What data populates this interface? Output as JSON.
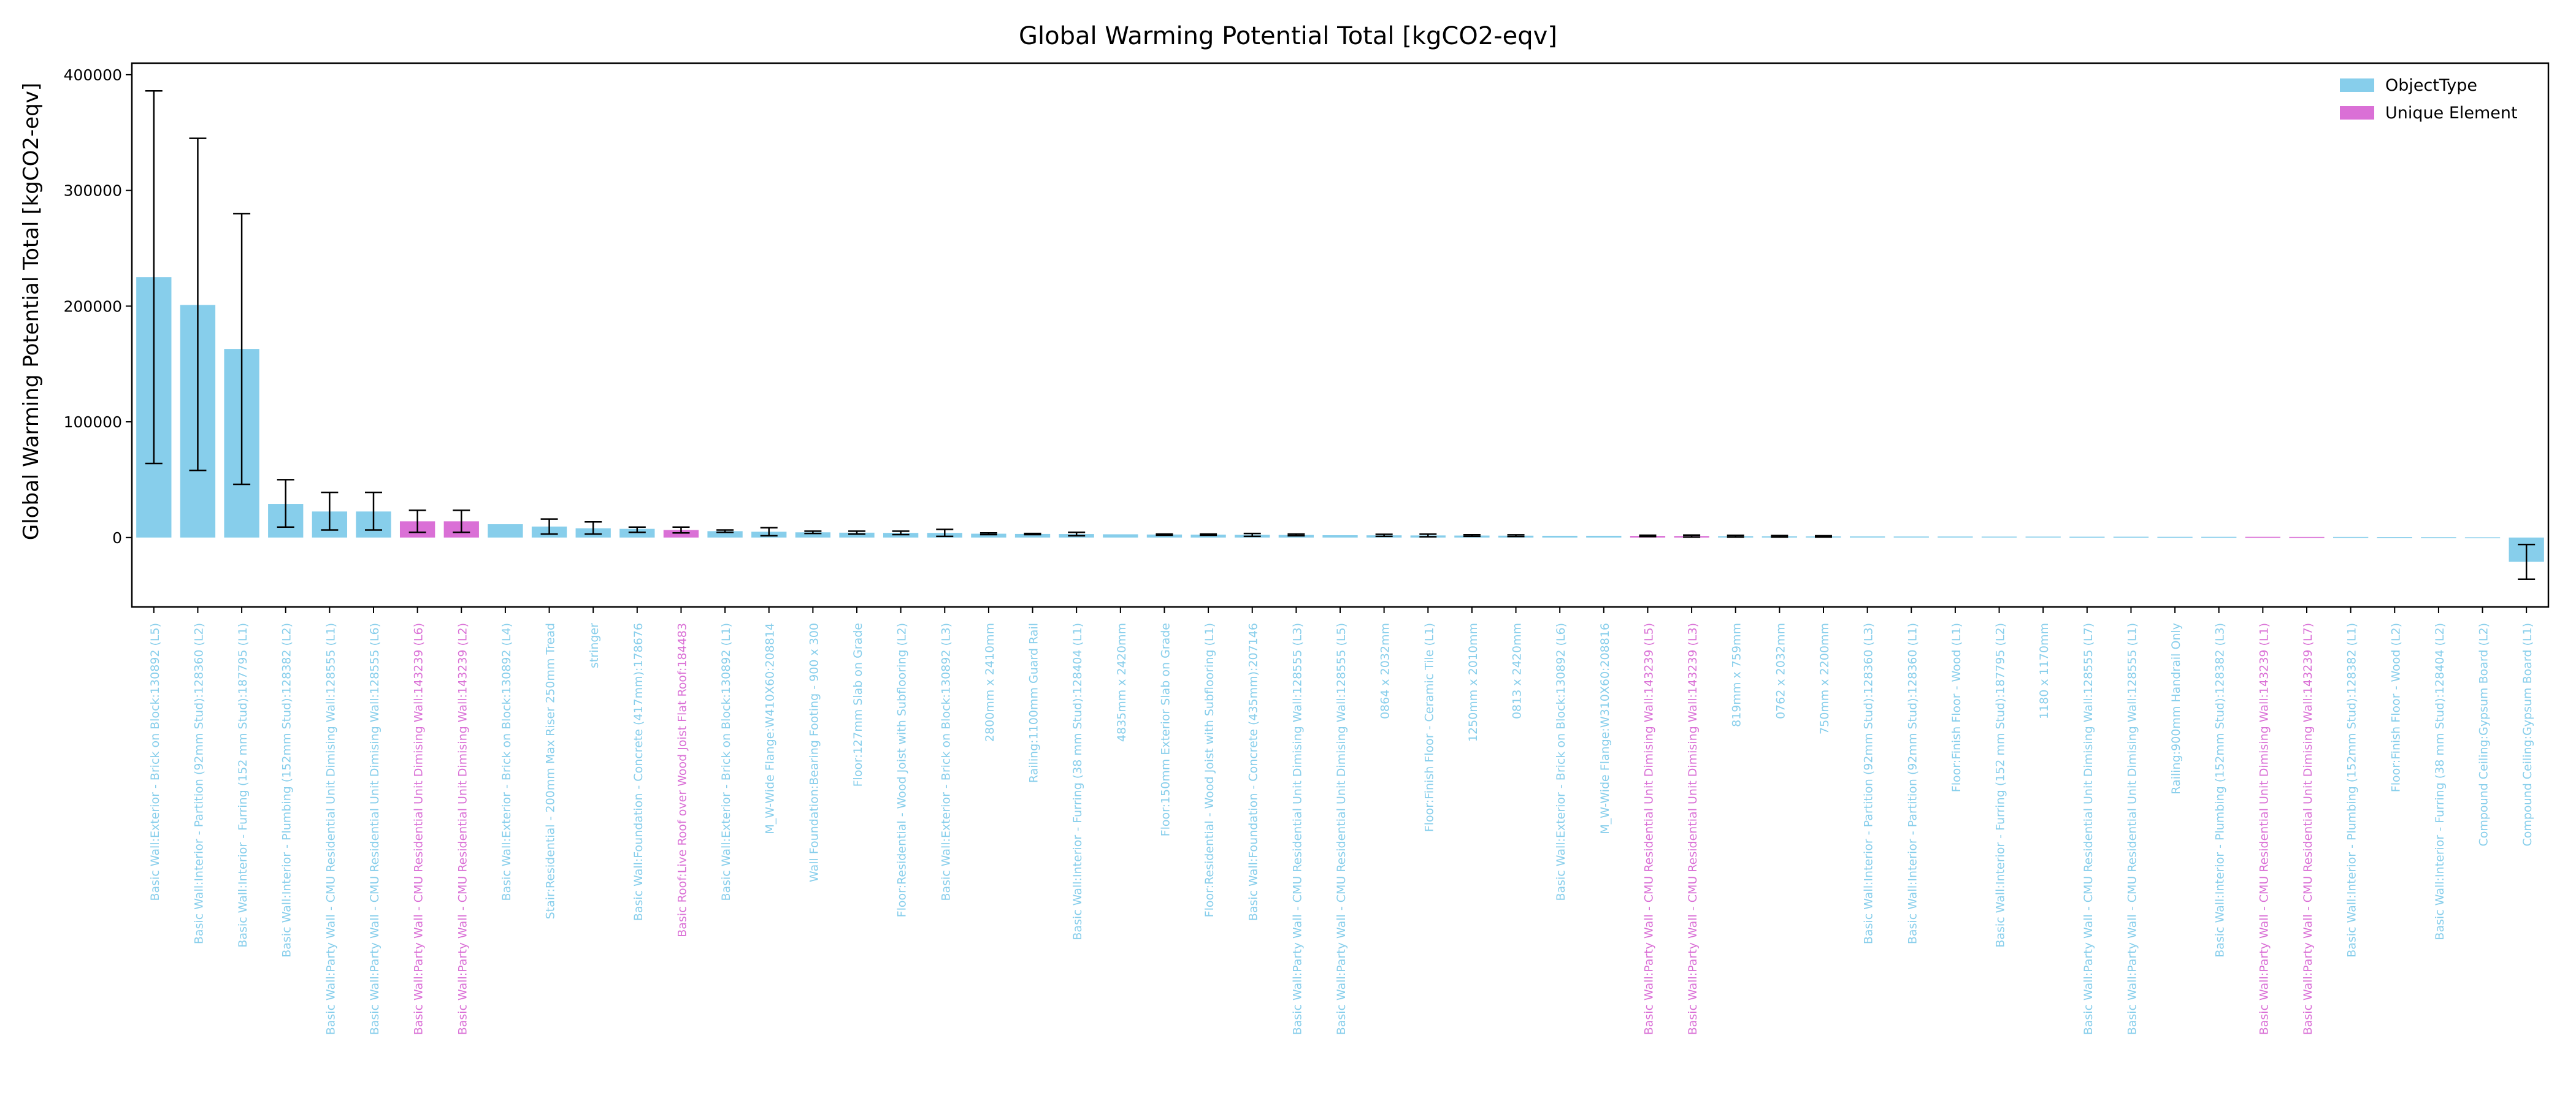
{
  "chart_data": {
    "type": "bar",
    "title": "Global Warming Potential Total [kgCO2-eqv]",
    "xlabel": "",
    "ylabel": "Global Warming Potential Total [kgCO2-eqv]",
    "ylim": [
      -60000,
      410000
    ],
    "yticks": [
      0,
      100000,
      200000,
      300000,
      400000
    ],
    "ytick_labels": [
      "0",
      "100000",
      "200000",
      "300000",
      "400000"
    ],
    "grid": false,
    "legend_position": "top-right",
    "series": [
      {
        "name": "ObjectType",
        "color": "#87ceeb"
      },
      {
        "name": "Unique Element",
        "color": "#da70d6"
      }
    ],
    "categories": [
      "Basic Wall:Exterior - Brick on Block:130892 (L5)",
      "Basic Wall:Interior - Partition (92mm Stud):128360 (L2)",
      "Basic Wall:Interior - Furring (152 mm Stud):187795 (L1)",
      "Basic Wall:Interior - Plumbing (152mm Stud):128382 (L2)",
      "Basic Wall:Party Wall - CMU Residential Unit Dimising Wall:128555 (L1)",
      "Basic Wall:Party Wall - CMU Residential Unit Dimising Wall:128555 (L6)",
      "Basic Wall:Party Wall - CMU Residential Unit Dimising Wall:143239 (L6)",
      "Basic Wall:Party Wall - CMU Residential Unit Dimising Wall:143239 (L2)",
      "Basic Wall:Exterior - Brick on Block:130892 (L4)",
      "Stair:Residential - 200mm Max Riser 250mm Tread",
      "stringer",
      "Basic Wall:Foundation - Concrete (417mm):178676",
      "Basic Roof:Live Roof over Wood Joist Flat Roof:184483",
      "Basic Wall:Exterior - Brick on Block:130892 (L1)",
      "M_W-Wide Flange:W410X60:208814",
      "Wall Foundation:Bearing Footing - 900 x 300",
      "Floor:127mm Slab on Grade",
      "Floor:Residential - Wood Joist with Subflooring (L2)",
      "Basic Wall:Exterior - Brick on Block:130892 (L3)",
      "2800mm x 2410mm",
      "Railing:1100mm Guard Rail",
      "Basic Wall:Interior - Furring (38 mm Stud):128404 (L1)",
      "4835mm x 2420mm",
      "Floor:150mm Exterior Slab on Grade",
      "Floor:Residential - Wood Joist with Subflooring (L1)",
      "Basic Wall:Foundation - Concrete (435mm):207146",
      "Basic Wall:Party Wall - CMU Residential Unit Dimising Wall:128555 (L3)",
      "Basic Wall:Party Wall - CMU Residential Unit Dimising Wall:128555 (L5)",
      "0864 x 2032mm",
      "Floor:Finish Floor - Ceramic Tile (L1)",
      "1250mm x 2010mm",
      "0813 x 2420mm",
      "Basic Wall:Exterior - Brick on Block:130892 (L6)",
      "M_W-Wide Flange:W310X60:208816",
      "Basic Wall:Party Wall - CMU Residential Unit Dimising Wall:143239 (L5)",
      "Basic Wall:Party Wall - CMU Residential Unit Dimising Wall:143239 (L3)",
      "819mm x 759mm",
      "0762 x 2032mm",
      "750mm x 2200mm",
      "Basic Wall:Interior - Partition (92mm Stud):128360 (L3)",
      "Basic Wall:Interior - Partition (92mm Stud):128360 (L1)",
      "Floor:Finish Floor - Wood (L1)",
      "Basic Wall:Interior - Furring (152 mm Stud):187795 (L2)",
      "1180 x 1170mm",
      "Basic Wall:Party Wall - CMU Residential Unit Dimising Wall:128555 (L7)",
      "Basic Wall:Party Wall - CMU Residential Unit Dimising Wall:128555 (L1)",
      "Railing:900mm Handrail Only",
      "Basic Wall:Interior - Plumbing (152mm Stud):128382 (L3)",
      "Basic Wall:Party Wall - CMU Residential Unit Dimising Wall:143239 (L1)",
      "Basic Wall:Party Wall - CMU Residential Unit Dimising Wall:143239 (L7)",
      "Basic Wall:Interior - Plumbing (152mm Stud):128382 (L1)",
      "Floor:Finish Floor - Wood (L2)",
      "Basic Wall:Interior - Furring (38 mm Stud):128404 (L2)",
      "Compound Ceiling:Gypsum Board (L2)",
      "Compound Ceiling:Gypsum Board (L1)"
    ],
    "group": [
      "ObjectType",
      "ObjectType",
      "ObjectType",
      "ObjectType",
      "ObjectType",
      "ObjectType",
      "Unique Element",
      "Unique Element",
      "ObjectType",
      "ObjectType",
      "ObjectType",
      "ObjectType",
      "Unique Element",
      "ObjectType",
      "ObjectType",
      "ObjectType",
      "ObjectType",
      "ObjectType",
      "ObjectType",
      "ObjectType",
      "ObjectType",
      "ObjectType",
      "ObjectType",
      "ObjectType",
      "ObjectType",
      "ObjectType",
      "ObjectType",
      "ObjectType",
      "ObjectType",
      "ObjectType",
      "ObjectType",
      "ObjectType",
      "ObjectType",
      "ObjectType",
      "Unique Element",
      "Unique Element",
      "ObjectType",
      "ObjectType",
      "ObjectType",
      "ObjectType",
      "ObjectType",
      "ObjectType",
      "ObjectType",
      "ObjectType",
      "ObjectType",
      "ObjectType",
      "ObjectType",
      "ObjectType",
      "Unique Element",
      "Unique Element",
      "ObjectType",
      "ObjectType",
      "ObjectType",
      "ObjectType",
      "ObjectType"
    ],
    "values": [
      225000,
      201000,
      163000,
      29000,
      22500,
      22500,
      14000,
      14000,
      11500,
      9500,
      8000,
      7500,
      6500,
      5500,
      5000,
      4500,
      4200,
      4000,
      4000,
      3300,
      3100,
      3000,
      2800,
      2600,
      2500,
      2300,
      2200,
      2000,
      1900,
      1800,
      1700,
      1600,
      1500,
      1500,
      1400,
      1300,
      1200,
      1100,
      1000,
      1000,
      900,
      900,
      800,
      800,
      700,
      700,
      600,
      600,
      600,
      500,
      500,
      400,
      300,
      200,
      -21000
    ],
    "error_low": [
      64000,
      58000,
      46000,
      9000,
      6500,
      6500,
      4500,
      4500,
      null,
      3000,
      3000,
      4500,
      4000,
      4500,
      1500,
      3500,
      3000,
      2500,
      1000,
      2500,
      2500,
      1500,
      null,
      2000,
      2000,
      1000,
      1500,
      null,
      1000,
      700,
      1000,
      900,
      null,
      null,
      800,
      500,
      500,
      500,
      500,
      null,
      null,
      null,
      null,
      null,
      null,
      null,
      null,
      null,
      null,
      null,
      null,
      null,
      null,
      null,
      -36000
    ],
    "error_high": [
      386000,
      345000,
      280000,
      50000,
      39000,
      39000,
      23500,
      23500,
      null,
      16000,
      13500,
      9000,
      9000,
      6500,
      8500,
      5500,
      5500,
      5500,
      7000,
      4000,
      3500,
      4500,
      null,
      3000,
      3000,
      3500,
      3000,
      null,
      2800,
      2900,
      2400,
      2300,
      null,
      null,
      2000,
      2100,
      1900,
      1700,
      1500,
      null,
      null,
      null,
      null,
      null,
      null,
      null,
      null,
      null,
      null,
      null,
      null,
      null,
      null,
      null,
      -6000
    ]
  }
}
